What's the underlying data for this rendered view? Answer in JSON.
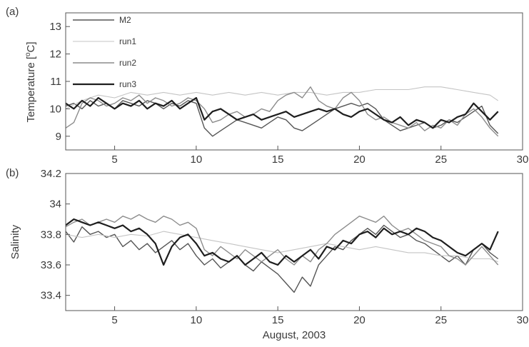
{
  "figure": {
    "xlabel": "August, 2003"
  },
  "chart_data": [
    {
      "type": "line",
      "panel_label": "(a)",
      "title": "",
      "xlabel": "",
      "ylabel": "Temperature [°C]",
      "ylabel_parts": {
        "main": "Temperature [",
        "super": "o",
        "tail": "C]"
      },
      "xlim": [
        2,
        30
      ],
      "ylim": [
        8.5,
        13.5
      ],
      "xticks": [
        5,
        10,
        15,
        20,
        25,
        30
      ],
      "yticks": [
        9,
        10,
        11,
        12,
        13
      ],
      "grid": false,
      "legend": "top-left",
      "series": [
        {
          "name": "M2",
          "color": "#555555",
          "width": 1.4,
          "x": [
            2,
            2.5,
            3,
            3.5,
            4,
            4.5,
            5,
            5.5,
            6,
            6.5,
            7,
            7.5,
            8,
            8.5,
            9,
            9.5,
            10,
            10.5,
            11,
            11.5,
            12,
            12.5,
            13,
            13.5,
            14,
            14.5,
            15,
            15.5,
            16,
            16.5,
            17,
            17.5,
            18,
            18.5,
            19,
            19.5,
            20,
            20.5,
            21,
            21.5,
            22,
            22.5,
            23,
            23.5,
            24,
            24.5,
            25,
            25.5,
            26,
            26.5,
            27,
            27.5,
            28,
            28.5
          ],
          "values": [
            10.1,
            10.2,
            10.0,
            10.3,
            10.1,
            10.2,
            10.0,
            10.3,
            10.2,
            10.1,
            10.3,
            10.2,
            10.0,
            10.2,
            10.1,
            10.3,
            10.2,
            9.3,
            9.0,
            9.2,
            9.4,
            9.6,
            9.5,
            9.4,
            9.3,
            9.5,
            9.7,
            9.6,
            9.3,
            9.2,
            9.4,
            9.6,
            9.8,
            10.0,
            10.1,
            10.2,
            10.1,
            10.2,
            10.0,
            9.6,
            9.4,
            9.2,
            9.3,
            9.4,
            9.5,
            9.3,
            9.4,
            9.6,
            9.5,
            9.7,
            9.9,
            10.1,
            9.4,
            9.1
          ]
        },
        {
          "name": "run1",
          "color": "#c4c4c4",
          "width": 1.1,
          "x": [
            2,
            3,
            4,
            5,
            6,
            7,
            8,
            9,
            10,
            11,
            12,
            13,
            14,
            15,
            16,
            17,
            18,
            19,
            20,
            21,
            22,
            23,
            24,
            25,
            26,
            27,
            28,
            28.5
          ],
          "values": [
            10.0,
            10.3,
            10.5,
            10.4,
            10.6,
            10.5,
            10.6,
            10.5,
            10.6,
            10.5,
            10.6,
            10.5,
            10.6,
            10.5,
            10.6,
            10.6,
            10.5,
            10.6,
            10.6,
            10.7,
            10.7,
            10.7,
            10.8,
            10.8,
            10.7,
            10.6,
            10.5,
            10.3
          ]
        },
        {
          "name": "run2",
          "color": "#8c8c8c",
          "width": 1.4,
          "x": [
            2,
            2.5,
            3,
            3.5,
            4,
            4.5,
            5,
            5.5,
            6,
            6.5,
            7,
            7.5,
            8,
            8.5,
            9,
            9.5,
            10,
            10.5,
            11,
            11.5,
            12,
            12.5,
            13,
            13.5,
            14,
            14.5,
            15,
            15.5,
            16,
            16.5,
            17,
            17.5,
            18,
            18.5,
            19,
            19.5,
            20,
            20.5,
            21,
            21.5,
            22,
            22.5,
            23,
            23.5,
            24,
            24.5,
            25,
            25.5,
            26,
            26.5,
            27,
            27.5,
            28,
            28.5
          ],
          "values": [
            9.3,
            9.5,
            10.2,
            10.4,
            10.3,
            10.1,
            10.2,
            10.4,
            10.3,
            10.5,
            10.2,
            10.4,
            10.3,
            10.1,
            10.2,
            10.4,
            10.3,
            10.0,
            9.5,
            9.6,
            9.8,
            9.9,
            9.7,
            9.8,
            10.0,
            9.9,
            10.3,
            10.5,
            10.6,
            10.4,
            10.8,
            10.3,
            10.1,
            10.0,
            10.4,
            10.6,
            10.3,
            9.8,
            9.6,
            9.7,
            9.5,
            9.4,
            9.3,
            9.5,
            9.2,
            9.4,
            9.3,
            9.6,
            9.4,
            9.8,
            10.0,
            9.7,
            9.3,
            9.0
          ]
        },
        {
          "name": "run3",
          "color": "#1e1e1e",
          "width": 2.2,
          "x": [
            2,
            2.5,
            3,
            3.5,
            4,
            4.5,
            5,
            5.5,
            6,
            6.5,
            7,
            7.5,
            8,
            8.5,
            9,
            9.5,
            10,
            10.5,
            11,
            11.5,
            12,
            12.5,
            13,
            13.5,
            14,
            14.5,
            15,
            15.5,
            16,
            16.5,
            17,
            17.5,
            18,
            18.5,
            19,
            19.5,
            20,
            20.5,
            21,
            21.5,
            22,
            22.5,
            23,
            23.5,
            24,
            24.5,
            25,
            25.5,
            26,
            26.5,
            27,
            27.5,
            28,
            28.5
          ],
          "values": [
            10.2,
            10.0,
            10.3,
            10.1,
            10.4,
            10.2,
            10.0,
            10.2,
            10.1,
            10.3,
            10.0,
            10.2,
            10.1,
            10.3,
            10.0,
            10.2,
            10.4,
            9.6,
            9.9,
            10.0,
            9.8,
            9.6,
            9.7,
            9.8,
            9.6,
            9.7,
            9.8,
            9.9,
            9.7,
            9.8,
            9.9,
            10.0,
            9.9,
            10.0,
            9.8,
            9.7,
            9.9,
            10.0,
            9.8,
            9.6,
            9.5,
            9.7,
            9.4,
            9.6,
            9.5,
            9.3,
            9.6,
            9.5,
            9.7,
            9.8,
            10.2,
            9.9,
            9.6,
            9.9
          ]
        }
      ]
    },
    {
      "type": "line",
      "panel_label": "(b)",
      "title": "",
      "xlabel": "",
      "ylabel": "Salinity",
      "xlim": [
        2,
        30
      ],
      "ylim": [
        33.3,
        34.2
      ],
      "xticks": [
        5,
        10,
        15,
        20,
        25,
        30
      ],
      "xtick_labels": [
        "5",
        "10",
        "15",
        "20",
        "25",
        "30"
      ],
      "yticks": [
        33.4,
        33.6,
        33.8,
        34,
        34.2
      ],
      "ytick_labels": [
        "33.4",
        "33.6",
        "33.8",
        "34",
        "34.2"
      ],
      "grid": false,
      "series": [
        {
          "name": "M2",
          "color": "#555555",
          "width": 1.4,
          "x": [
            2,
            2.5,
            3,
            3.5,
            4,
            4.5,
            5,
            5.5,
            6,
            6.5,
            7,
            7.5,
            8,
            8.5,
            9,
            9.5,
            10,
            10.5,
            11,
            11.5,
            12,
            12.5,
            13,
            13.5,
            14,
            14.5,
            15,
            15.5,
            16,
            16.5,
            17,
            17.5,
            18,
            18.5,
            19,
            19.5,
            20,
            20.5,
            21,
            21.5,
            22,
            22.5,
            23,
            23.5,
            24,
            24.5,
            25,
            25.5,
            26,
            26.5,
            27,
            27.5,
            28,
            28.5
          ],
          "values": [
            33.82,
            33.75,
            33.85,
            33.8,
            33.82,
            33.78,
            33.8,
            33.72,
            33.76,
            33.7,
            33.74,
            33.68,
            33.72,
            33.76,
            33.7,
            33.74,
            33.66,
            33.6,
            33.64,
            33.58,
            33.62,
            33.66,
            33.6,
            33.56,
            33.62,
            33.58,
            33.54,
            33.48,
            33.42,
            33.52,
            33.46,
            33.6,
            33.66,
            33.72,
            33.7,
            33.76,
            33.8,
            33.84,
            33.8,
            33.86,
            33.82,
            33.78,
            33.8,
            33.76,
            33.74,
            33.7,
            33.66,
            33.62,
            33.66,
            33.6,
            33.7,
            33.74,
            33.68,
            33.64
          ]
        },
        {
          "name": "run1",
          "color": "#c4c4c4",
          "width": 1.1,
          "x": [
            2,
            3,
            4,
            5,
            6,
            7,
            8,
            9,
            10,
            11,
            12,
            13,
            14,
            15,
            16,
            17,
            18,
            19,
            20,
            21,
            22,
            23,
            24,
            25,
            26,
            27,
            28,
            28.5
          ],
          "values": [
            33.8,
            33.78,
            33.8,
            33.78,
            33.8,
            33.79,
            33.82,
            33.8,
            33.78,
            33.76,
            33.74,
            33.72,
            33.7,
            33.68,
            33.7,
            33.72,
            33.74,
            33.72,
            33.7,
            33.72,
            33.7,
            33.68,
            33.68,
            33.66,
            33.66,
            33.64,
            33.64,
            33.62
          ]
        },
        {
          "name": "run2",
          "color": "#8c8c8c",
          "width": 1.4,
          "x": [
            2,
            2.5,
            3,
            3.5,
            4,
            4.5,
            5,
            5.5,
            6,
            6.5,
            7,
            7.5,
            8,
            8.5,
            9,
            9.5,
            10,
            10.5,
            11,
            11.5,
            12,
            12.5,
            13,
            13.5,
            14,
            14.5,
            15,
            15.5,
            16,
            16.5,
            17,
            17.5,
            18,
            18.5,
            19,
            19.5,
            20,
            20.5,
            21,
            21.5,
            22,
            22.5,
            23,
            23.5,
            24,
            24.5,
            25,
            25.5,
            26,
            26.5,
            27,
            27.5,
            28,
            28.5
          ],
          "values": [
            33.85,
            33.88,
            33.9,
            33.86,
            33.88,
            33.9,
            33.88,
            33.92,
            33.9,
            33.93,
            33.9,
            33.88,
            33.92,
            33.9,
            33.86,
            33.88,
            33.84,
            33.7,
            33.66,
            33.72,
            33.68,
            33.64,
            33.7,
            33.66,
            33.62,
            33.66,
            33.7,
            33.64,
            33.6,
            33.66,
            33.62,
            33.7,
            33.74,
            33.8,
            33.84,
            33.88,
            33.92,
            33.9,
            33.88,
            33.92,
            33.86,
            33.82,
            33.84,
            33.8,
            33.76,
            33.74,
            33.72,
            33.66,
            33.64,
            33.6,
            33.66,
            33.72,
            33.66,
            33.6
          ]
        },
        {
          "name": "run3",
          "color": "#1e1e1e",
          "width": 2.2,
          "x": [
            2,
            2.5,
            3,
            3.5,
            4,
            4.5,
            5,
            5.5,
            6,
            6.5,
            7,
            7.5,
            8,
            8.5,
            9,
            9.5,
            10,
            10.5,
            11,
            11.5,
            12,
            12.5,
            13,
            13.5,
            14,
            14.5,
            15,
            15.5,
            16,
            16.5,
            17,
            17.5,
            18,
            18.5,
            19,
            19.5,
            20,
            20.5,
            21,
            21.5,
            22,
            22.5,
            23,
            23.5,
            24,
            24.5,
            25,
            25.5,
            26,
            26.5,
            27,
            27.5,
            28,
            28.5
          ],
          "values": [
            33.86,
            33.9,
            33.88,
            33.86,
            33.88,
            33.86,
            33.84,
            33.86,
            33.82,
            33.84,
            33.8,
            33.74,
            33.6,
            33.72,
            33.78,
            33.8,
            33.74,
            33.66,
            33.68,
            33.64,
            33.62,
            33.66,
            33.6,
            33.64,
            33.68,
            33.62,
            33.6,
            33.66,
            33.62,
            33.66,
            33.7,
            33.64,
            33.72,
            33.7,
            33.76,
            33.74,
            33.8,
            33.82,
            33.78,
            33.84,
            33.8,
            33.82,
            33.8,
            33.84,
            33.82,
            33.78,
            33.76,
            33.72,
            33.68,
            33.66,
            33.7,
            33.74,
            33.7,
            33.82
          ]
        }
      ]
    }
  ]
}
